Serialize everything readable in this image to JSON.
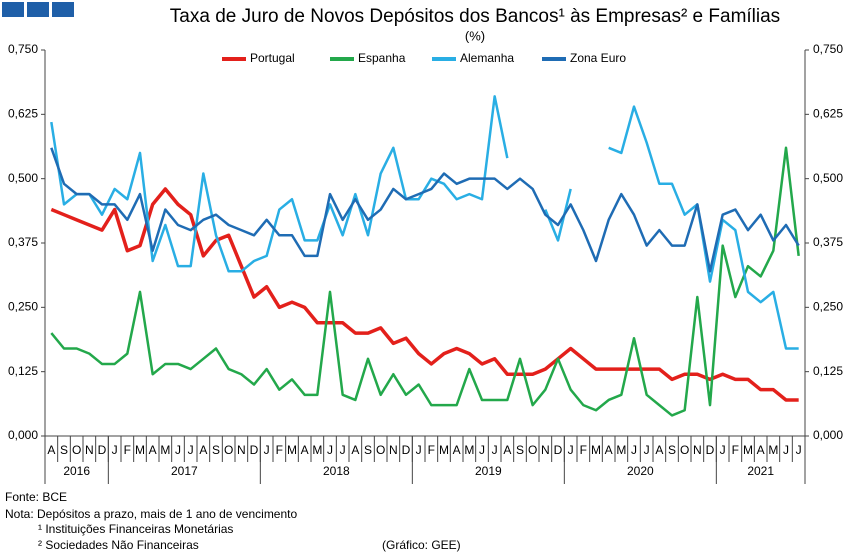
{
  "chart_data": {
    "type": "line",
    "title": "Taxa de Juro de Novos Depósitos dos Bancos¹ às Empresas² e Famílias",
    "subtitle": "(%)",
    "categories": [
      "A",
      "S",
      "O",
      "N",
      "D",
      "J",
      "F",
      "M",
      "A",
      "M",
      "J",
      "J",
      "A",
      "S",
      "O",
      "N",
      "D",
      "J",
      "F",
      "M",
      "A",
      "M",
      "J",
      "J",
      "A",
      "S",
      "O",
      "N",
      "D",
      "J",
      "F",
      "M",
      "A",
      "M",
      "J",
      "J",
      "A",
      "S",
      "O",
      "N",
      "D",
      "J",
      "F",
      "M",
      "A",
      "M",
      "J",
      "J",
      "A",
      "S",
      "O",
      "N",
      "D",
      "J",
      "F",
      "M",
      "A",
      "M",
      "J",
      "J"
    ],
    "year_groups": [
      {
        "label": "2016",
        "months": 5
      },
      {
        "label": "2017",
        "months": 12
      },
      {
        "label": "2018",
        "months": 12
      },
      {
        "label": "2019",
        "months": 12
      },
      {
        "label": "2020",
        "months": 12
      },
      {
        "label": "2021",
        "months": 7
      }
    ],
    "series": [
      {
        "name": "Portugal",
        "color": "#e3201b",
        "values": [
          0.44,
          0.43,
          0.42,
          0.41,
          0.4,
          0.44,
          0.36,
          0.37,
          0.45,
          0.48,
          0.45,
          0.43,
          0.35,
          0.38,
          0.39,
          0.33,
          0.27,
          0.29,
          0.25,
          0.26,
          0.25,
          0.22,
          0.22,
          0.22,
          0.2,
          0.2,
          0.21,
          0.18,
          0.19,
          0.16,
          0.14,
          0.16,
          0.17,
          0.16,
          0.14,
          0.15,
          0.12,
          0.12,
          0.12,
          0.13,
          0.15,
          0.17,
          0.15,
          0.13,
          0.13,
          0.13,
          0.13,
          0.13,
          0.13,
          0.11,
          0.12,
          0.12,
          0.11,
          0.12,
          0.11,
          0.11,
          0.09,
          0.09,
          0.07,
          0.07
        ]
      },
      {
        "name": "Espanha",
        "color": "#23a84b",
        "values": [
          0.2,
          0.17,
          0.17,
          0.16,
          0.14,
          0.14,
          0.16,
          0.28,
          0.12,
          0.14,
          0.14,
          0.13,
          0.15,
          0.17,
          0.13,
          0.12,
          0.1,
          0.13,
          0.09,
          0.11,
          0.08,
          0.08,
          0.28,
          0.08,
          0.07,
          0.15,
          0.08,
          0.12,
          0.08,
          0.1,
          0.06,
          0.06,
          0.06,
          0.13,
          0.07,
          0.07,
          0.07,
          0.15,
          0.06,
          0.09,
          0.15,
          0.09,
          0.06,
          0.05,
          0.07,
          0.08,
          0.19,
          0.08,
          0.06,
          0.04,
          0.05,
          0.27,
          0.06,
          0.37,
          0.27,
          0.33,
          0.31,
          0.36,
          0.56,
          0.35
        ]
      },
      {
        "name": "Alemanha",
        "color": "#29aee4",
        "values": [
          0.61,
          0.45,
          0.47,
          0.47,
          0.43,
          0.48,
          0.46,
          0.55,
          0.34,
          0.41,
          0.33,
          0.33,
          0.51,
          0.39,
          0.32,
          0.32,
          0.34,
          0.35,
          0.44,
          0.46,
          0.38,
          0.38,
          0.45,
          0.39,
          0.47,
          0.39,
          0.51,
          0.56,
          0.46,
          0.46,
          0.5,
          0.49,
          0.46,
          0.47,
          0.46,
          0.66,
          0.54,
          null,
          null,
          0.44,
          0.38,
          0.48,
          null,
          null,
          0.56,
          0.55,
          0.64,
          0.57,
          0.49,
          0.49,
          0.43,
          0.45,
          0.3,
          0.42,
          0.4,
          0.28,
          0.26,
          0.28,
          0.17,
          0.17
        ]
      },
      {
        "name": "Zona Euro",
        "color": "#1f6cb4",
        "values": [
          0.56,
          0.49,
          0.47,
          0.47,
          0.45,
          0.45,
          0.42,
          0.47,
          0.36,
          0.44,
          0.41,
          0.4,
          0.42,
          0.43,
          0.41,
          0.4,
          0.39,
          0.42,
          0.39,
          0.39,
          0.35,
          0.35,
          0.47,
          0.42,
          0.46,
          0.42,
          0.44,
          0.48,
          0.46,
          0.47,
          0.48,
          0.51,
          0.49,
          0.5,
          0.5,
          0.5,
          0.48,
          0.5,
          0.48,
          0.43,
          0.41,
          0.45,
          0.4,
          0.34,
          0.42,
          0.47,
          0.43,
          0.37,
          0.4,
          0.37,
          0.37,
          0.45,
          0.32,
          0.43,
          0.44,
          0.4,
          0.43,
          0.38,
          0.41,
          0.37
        ]
      }
    ],
    "ylim": [
      0,
      0.75
    ],
    "yticks": [
      {
        "value": 0,
        "label": "0,000"
      },
      {
        "value": 0.125,
        "label": "0,125"
      },
      {
        "value": 0.25,
        "label": "0,250"
      },
      {
        "value": 0.375,
        "label": "0,375"
      },
      {
        "value": 0.5,
        "label": "0,500"
      },
      {
        "value": 0.625,
        "label": "0,625"
      },
      {
        "value": 0.75,
        "label": "0,750"
      }
    ],
    "y2lim": [
      0,
      0.75
    ],
    "y2ticks": [
      {
        "value": 0,
        "label": "0,000"
      },
      {
        "value": 0.125,
        "label": "0,125"
      },
      {
        "value": 0.25,
        "label": "0,250"
      },
      {
        "value": 0.375,
        "label": "0,375"
      },
      {
        "value": 0.5,
        "label": "0,500"
      },
      {
        "value": 0.625,
        "label": "0,625"
      },
      {
        "value": 0.75,
        "label": "0,750"
      }
    ],
    "legend": "top",
    "notes": [
      "Fonte: BCE",
      "Nota: Depósitos a prazo, mais de 1 ano de vencimento",
      "¹ Instituições Financeiras Monetárias",
      "² Sociedades Não Financeiras"
    ],
    "credit": "(Gráfico: GEE)"
  }
}
